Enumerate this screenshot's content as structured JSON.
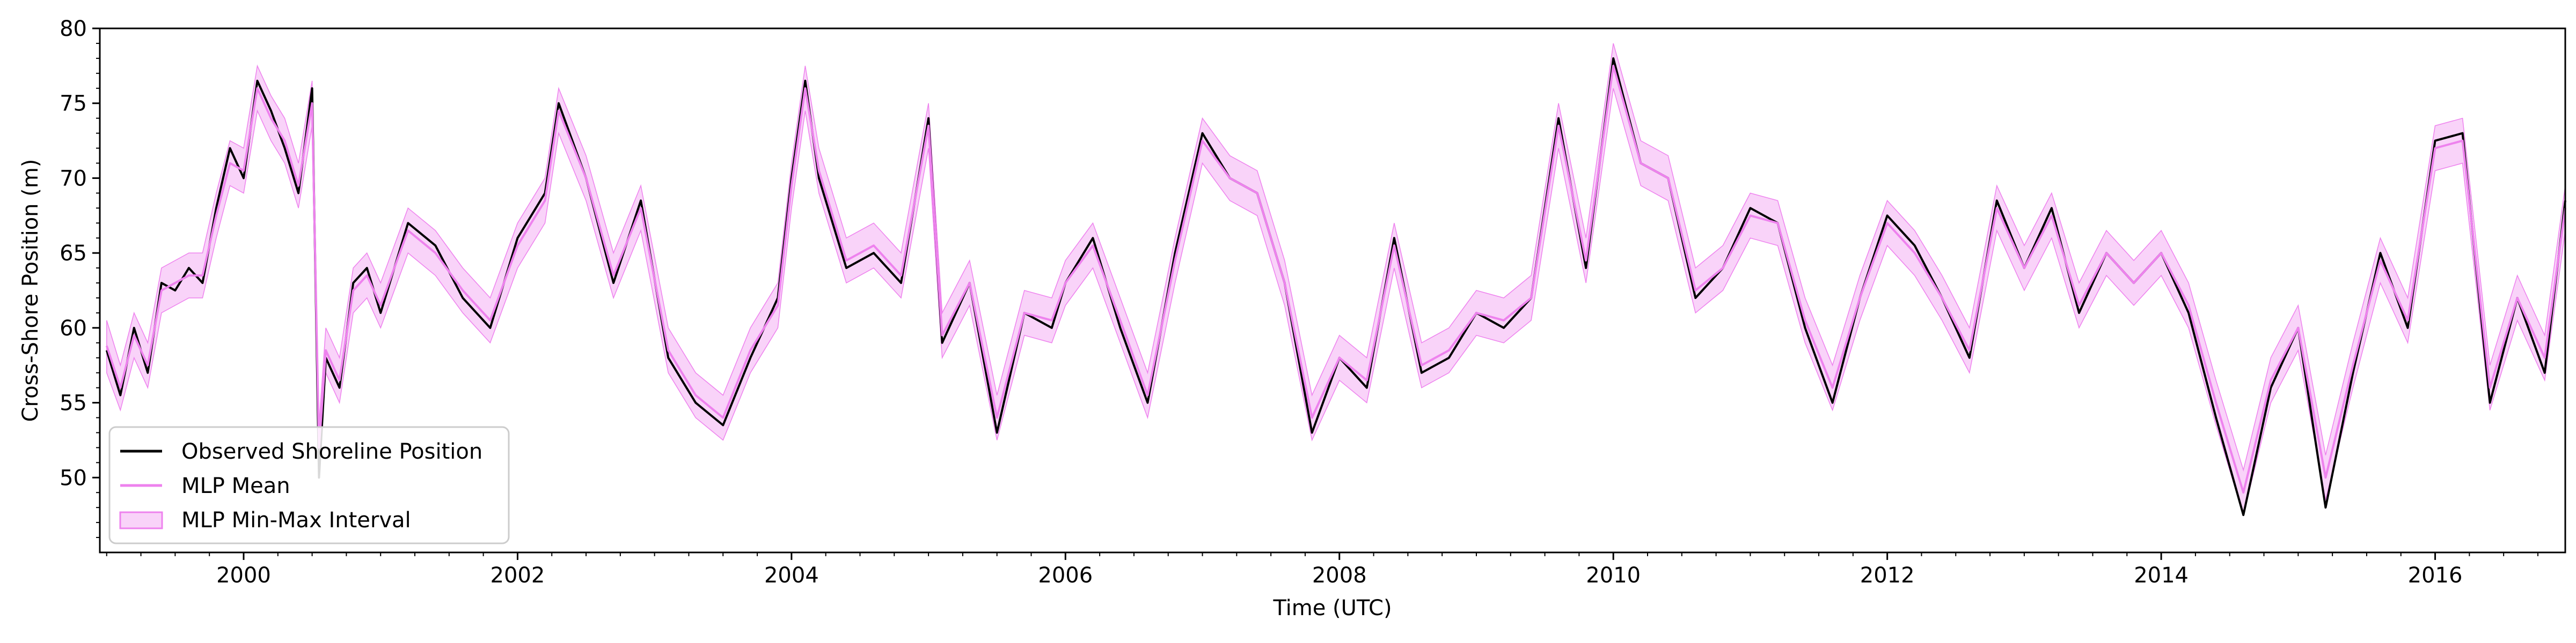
{
  "chart_data": {
    "type": "line",
    "title": "",
    "xlabel": "Time (UTC)",
    "ylabel": "Cross-Shore Position (m)",
    "xlim": [
      1998.95,
      2016.95
    ],
    "ylim": [
      45,
      80
    ],
    "x_ticks": [
      2000,
      2002,
      2004,
      2006,
      2008,
      2010,
      2012,
      2014,
      2016
    ],
    "x_tick_labels": [
      "2000",
      "2002",
      "2004",
      "2006",
      "2008",
      "2010",
      "2012",
      "2014",
      "2016"
    ],
    "y_ticks": [
      50,
      55,
      60,
      65,
      70,
      75,
      80
    ],
    "y_tick_labels": [
      "50",
      "55",
      "60",
      "65",
      "70",
      "75",
      "80"
    ],
    "grid": false,
    "legend_position": "bottom-left",
    "colors": {
      "observed": "#000000",
      "mean": "#ee82ee",
      "interval_fill": "#ee82ee",
      "interval_edge": "#ee82ee"
    },
    "series": [
      {
        "name": "Observed Shoreline Position",
        "kind": "line",
        "x": [
          1999.0,
          1999.1,
          1999.2,
          1999.3,
          1999.4,
          1999.5,
          1999.6,
          1999.7,
          1999.8,
          1999.9,
          2000.0,
          2000.1,
          2000.2,
          2000.3,
          2000.4,
          2000.5,
          2000.55,
          2000.6,
          2000.7,
          2000.8,
          2000.9,
          2001.0,
          2001.2,
          2001.4,
          2001.6,
          2001.8,
          2002.0,
          2002.2,
          2002.3,
          2002.5,
          2002.7,
          2002.9,
          2003.1,
          2003.3,
          2003.5,
          2003.7,
          2003.9,
          2004.0,
          2004.1,
          2004.2,
          2004.4,
          2004.6,
          2004.8,
          2005.0,
          2005.1,
          2005.3,
          2005.5,
          2005.7,
          2005.9,
          2006.0,
          2006.2,
          2006.4,
          2006.6,
          2006.8,
          2007.0,
          2007.2,
          2007.4,
          2007.6,
          2007.8,
          2008.0,
          2008.2,
          2008.4,
          2008.6,
          2008.8,
          2009.0,
          2009.2,
          2009.4,
          2009.6,
          2009.8,
          2010.0,
          2010.2,
          2010.4,
          2010.6,
          2010.8,
          2011.0,
          2011.2,
          2011.4,
          2011.6,
          2011.8,
          2012.0,
          2012.2,
          2012.4,
          2012.6,
          2012.8,
          2013.0,
          2013.2,
          2013.4,
          2013.6,
          2013.8,
          2014.0,
          2014.2,
          2014.4,
          2014.6,
          2014.8,
          2015.0,
          2015.2,
          2015.4,
          2015.6,
          2015.8,
          2016.0,
          2016.2,
          2016.4,
          2016.6,
          2016.8,
          2016.95
        ],
        "y": [
          58.5,
          55.5,
          60.0,
          57.0,
          63.0,
          62.5,
          64.0,
          63.0,
          68.0,
          72.0,
          70.0,
          76.5,
          74.5,
          72.0,
          69.0,
          76.0,
          50.0,
          58.0,
          56.0,
          63.0,
          64.0,
          61.0,
          67.0,
          65.5,
          62.0,
          60.0,
          66.0,
          69.0,
          75.0,
          70.0,
          63.0,
          68.5,
          58.0,
          55.0,
          53.5,
          58.0,
          62.0,
          70.0,
          76.5,
          70.0,
          64.0,
          65.0,
          63.0,
          74.0,
          59.0,
          63.0,
          53.0,
          61.0,
          60.0,
          63.0,
          66.0,
          60.0,
          55.0,
          65.0,
          73.0,
          70.0,
          69.0,
          63.0,
          53.0,
          58.0,
          56.0,
          66.0,
          57.0,
          58.0,
          61.0,
          60.0,
          62.0,
          74.0,
          64.0,
          78.0,
          71.0,
          70.0,
          62.0,
          64.0,
          68.0,
          67.0,
          60.0,
          55.0,
          62.0,
          67.5,
          65.5,
          62.0,
          58.0,
          68.5,
          64.0,
          68.0,
          61.0,
          65.0,
          63.0,
          65.0,
          61.0,
          54.0,
          47.5,
          56.0,
          60.0,
          48.0,
          57.0,
          65.0,
          60.0,
          72.5,
          73.0,
          55.0,
          62.0,
          57.0,
          68.5
        ]
      },
      {
        "name": "MLP Mean",
        "kind": "line",
        "x": [
          1999.0,
          1999.1,
          1999.2,
          1999.3,
          1999.4,
          1999.5,
          1999.6,
          1999.7,
          1999.8,
          1999.9,
          2000.0,
          2000.1,
          2000.2,
          2000.3,
          2000.4,
          2000.5,
          2000.55,
          2000.6,
          2000.7,
          2000.8,
          2000.9,
          2001.0,
          2001.2,
          2001.4,
          2001.6,
          2001.8,
          2002.0,
          2002.2,
          2002.3,
          2002.5,
          2002.7,
          2002.9,
          2003.1,
          2003.3,
          2003.5,
          2003.7,
          2003.9,
          2004.0,
          2004.1,
          2004.2,
          2004.4,
          2004.6,
          2004.8,
          2005.0,
          2005.1,
          2005.3,
          2005.5,
          2005.7,
          2005.9,
          2006.0,
          2006.2,
          2006.4,
          2006.6,
          2006.8,
          2007.0,
          2007.2,
          2007.4,
          2007.6,
          2007.8,
          2008.0,
          2008.2,
          2008.4,
          2008.6,
          2008.8,
          2009.0,
          2009.2,
          2009.4,
          2009.6,
          2009.8,
          2010.0,
          2010.2,
          2010.4,
          2010.6,
          2010.8,
          2011.0,
          2011.2,
          2011.4,
          2011.6,
          2011.8,
          2012.0,
          2012.2,
          2012.4,
          2012.6,
          2012.8,
          2013.0,
          2013.2,
          2013.4,
          2013.6,
          2013.8,
          2014.0,
          2014.2,
          2014.4,
          2014.6,
          2014.8,
          2015.0,
          2015.2,
          2015.4,
          2015.6,
          2015.8,
          2016.0,
          2016.2,
          2016.4,
          2016.6,
          2016.8,
          2016.95
        ],
        "y": [
          58.8,
          56.0,
          59.5,
          57.5,
          62.5,
          63.0,
          63.5,
          63.5,
          67.5,
          71.0,
          70.5,
          76.0,
          74.0,
          72.5,
          69.5,
          75.0,
          52.0,
          58.5,
          56.5,
          62.5,
          63.5,
          61.5,
          66.5,
          65.0,
          62.5,
          60.5,
          65.5,
          68.5,
          74.5,
          70.0,
          63.5,
          68.0,
          58.5,
          55.5,
          54.0,
          58.5,
          61.5,
          69.5,
          76.0,
          70.5,
          64.5,
          65.5,
          63.5,
          73.5,
          59.5,
          63.0,
          54.0,
          61.0,
          60.5,
          63.0,
          65.5,
          60.5,
          55.5,
          64.5,
          72.5,
          70.0,
          69.0,
          63.0,
          54.0,
          58.0,
          56.5,
          65.5,
          57.5,
          58.5,
          61.0,
          60.5,
          62.0,
          73.5,
          64.5,
          77.5,
          71.0,
          70.0,
          62.5,
          64.0,
          67.5,
          67.0,
          60.5,
          56.0,
          62.0,
          67.0,
          65.0,
          62.0,
          58.5,
          68.0,
          64.0,
          67.5,
          61.5,
          65.0,
          63.0,
          65.0,
          61.5,
          55.0,
          49.0,
          56.5,
          60.0,
          50.0,
          57.5,
          64.5,
          60.5,
          72.0,
          72.5,
          56.0,
          62.0,
          58.0,
          68.0
        ]
      },
      {
        "name": "MLP Min-Max Interval",
        "kind": "band",
        "x": [
          1999.0,
          1999.1,
          1999.2,
          1999.3,
          1999.4,
          1999.5,
          1999.6,
          1999.7,
          1999.8,
          1999.9,
          2000.0,
          2000.1,
          2000.2,
          2000.3,
          2000.4,
          2000.5,
          2000.55,
          2000.6,
          2000.7,
          2000.8,
          2000.9,
          2001.0,
          2001.2,
          2001.4,
          2001.6,
          2001.8,
          2002.0,
          2002.2,
          2002.3,
          2002.5,
          2002.7,
          2002.9,
          2003.1,
          2003.3,
          2003.5,
          2003.7,
          2003.9,
          2004.0,
          2004.1,
          2004.2,
          2004.4,
          2004.6,
          2004.8,
          2005.0,
          2005.1,
          2005.3,
          2005.5,
          2005.7,
          2005.9,
          2006.0,
          2006.2,
          2006.4,
          2006.6,
          2006.8,
          2007.0,
          2007.2,
          2007.4,
          2007.6,
          2007.8,
          2008.0,
          2008.2,
          2008.4,
          2008.6,
          2008.8,
          2009.0,
          2009.2,
          2009.4,
          2009.6,
          2009.8,
          2010.0,
          2010.2,
          2010.4,
          2010.6,
          2010.8,
          2011.0,
          2011.2,
          2011.4,
          2011.6,
          2011.8,
          2012.0,
          2012.2,
          2012.4,
          2012.6,
          2012.8,
          2013.0,
          2013.2,
          2013.4,
          2013.6,
          2013.8,
          2014.0,
          2014.2,
          2014.4,
          2014.6,
          2014.8,
          2015.0,
          2015.2,
          2015.4,
          2015.6,
          2015.8,
          2016.0,
          2016.2,
          2016.4,
          2016.6,
          2016.8,
          2016.95
        ],
        "y_min": [
          57.0,
          54.5,
          58.0,
          56.0,
          61.0,
          61.5,
          62.0,
          62.0,
          66.0,
          69.5,
          69.0,
          74.5,
          72.5,
          71.0,
          68.0,
          73.5,
          50.5,
          57.0,
          55.0,
          61.0,
          62.0,
          60.0,
          65.0,
          63.5,
          61.0,
          59.0,
          64.0,
          67.0,
          73.0,
          68.5,
          62.0,
          66.5,
          57.0,
          54.0,
          52.5,
          57.0,
          60.0,
          68.0,
          74.5,
          69.0,
          63.0,
          64.0,
          62.0,
          72.0,
          58.0,
          61.5,
          52.5,
          59.5,
          59.0,
          61.5,
          64.0,
          59.0,
          54.0,
          63.0,
          71.0,
          68.5,
          67.5,
          61.5,
          52.5,
          56.5,
          55.0,
          64.0,
          56.0,
          57.0,
          59.5,
          59.0,
          60.5,
          72.0,
          63.0,
          76.0,
          69.5,
          68.5,
          61.0,
          62.5,
          66.0,
          65.5,
          59.0,
          54.5,
          60.5,
          65.5,
          63.5,
          60.5,
          57.0,
          66.5,
          62.5,
          66.0,
          60.0,
          63.5,
          61.5,
          63.5,
          60.0,
          53.5,
          47.5,
          55.0,
          58.5,
          48.5,
          56.0,
          63.0,
          59.0,
          70.5,
          71.0,
          54.5,
          60.5,
          56.5,
          66.5
        ],
        "y_max": [
          60.5,
          57.5,
          61.0,
          59.0,
          64.0,
          64.5,
          65.0,
          65.0,
          69.0,
          72.5,
          72.0,
          77.5,
          75.5,
          74.0,
          71.0,
          76.5,
          53.5,
          60.0,
          58.0,
          64.0,
          65.0,
          63.0,
          68.0,
          66.5,
          64.0,
          62.0,
          67.0,
          70.0,
          76.0,
          71.5,
          65.0,
          69.5,
          60.0,
          57.0,
          55.5,
          60.0,
          63.0,
          71.0,
          77.5,
          72.0,
          66.0,
          67.0,
          65.0,
          75.0,
          61.0,
          64.5,
          55.5,
          62.5,
          62.0,
          64.5,
          67.0,
          62.0,
          57.0,
          66.0,
          74.0,
          71.5,
          70.5,
          64.5,
          55.5,
          59.5,
          58.0,
          67.0,
          59.0,
          60.0,
          62.5,
          62.0,
          63.5,
          75.0,
          66.0,
          79.0,
          72.5,
          71.5,
          64.0,
          65.5,
          69.0,
          68.5,
          62.0,
          57.5,
          63.5,
          68.5,
          66.5,
          63.5,
          60.0,
          69.5,
          65.5,
          69.0,
          63.0,
          66.5,
          64.5,
          66.5,
          63.0,
          56.5,
          50.5,
          58.0,
          61.5,
          51.5,
          59.0,
          66.0,
          62.0,
          73.5,
          74.0,
          57.5,
          63.5,
          59.5,
          69.5
        ]
      }
    ]
  }
}
